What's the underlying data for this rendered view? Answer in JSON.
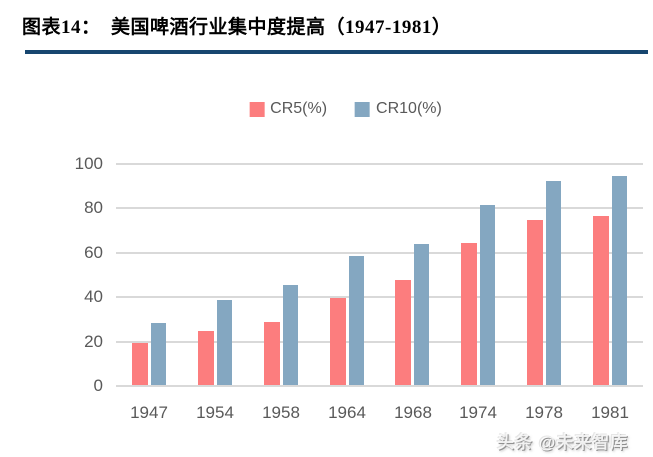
{
  "header": {
    "title": "图表14：  美国啤酒行业集中度提高（1947-1981）"
  },
  "chart_data": {
    "type": "bar",
    "title": "美国啤酒行业集中度提高（1947-1981）",
    "categories": [
      "1947",
      "1954",
      "1958",
      "1964",
      "1968",
      "1974",
      "1978",
      "1981"
    ],
    "series": [
      {
        "name": "CR5(%)",
        "color": "#FC7D7E",
        "values": [
          19,
          24.5,
          28.5,
          39,
          47.5,
          64,
          74.5,
          76
        ]
      },
      {
        "name": "CR10(%)",
        "color": "#84A7C1",
        "values": [
          28,
          38.5,
          45,
          58,
          63.5,
          81,
          92,
          94
        ]
      }
    ],
    "xlabel": "",
    "ylabel": "",
    "ylim": [
      0,
      100
    ],
    "yticks": [
      0,
      20,
      40,
      60,
      80,
      100
    ],
    "grid": true,
    "legend_position": "top-center"
  },
  "watermark": {
    "text": "头条 @未来智库"
  },
  "colors": {
    "divider": "#17466F",
    "gridline": "#D9D9D9",
    "axis_text": "#595959",
    "title_text": "#000000",
    "cr5": "#FC7D7E",
    "cr10": "#84A7C1"
  }
}
